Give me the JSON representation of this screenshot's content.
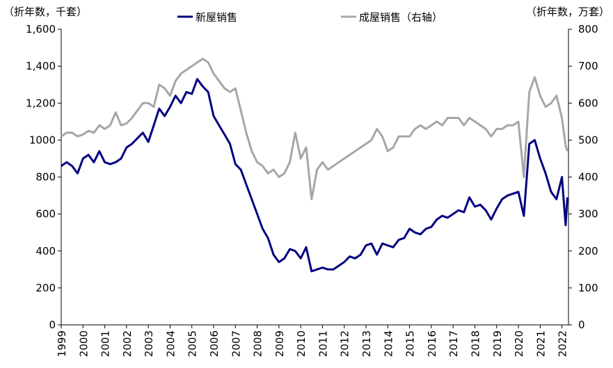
{
  "chart_data": {
    "type": "line",
    "y_label": "（折年数，千套）",
    "y2_label": "（折年数，万套）",
    "x": [
      1999,
      1999.25,
      1999.5,
      1999.75,
      2000,
      2000.25,
      2000.5,
      2000.75,
      2001,
      2001.25,
      2001.5,
      2001.75,
      2002,
      2002.25,
      2002.5,
      2002.75,
      2003,
      2003.25,
      2003.5,
      2003.75,
      2004,
      2004.25,
      2004.5,
      2004.75,
      2005,
      2005.25,
      2005.5,
      2005.75,
      2006,
      2006.25,
      2006.5,
      2006.75,
      2007,
      2007.25,
      2007.5,
      2007.75,
      2008,
      2008.25,
      2008.5,
      2008.75,
      2009,
      2009.25,
      2009.5,
      2009.75,
      2010,
      2010.25,
      2010.5,
      2010.75,
      2011,
      2011.25,
      2011.5,
      2011.75,
      2012,
      2012.25,
      2012.5,
      2012.75,
      2013,
      2013.25,
      2013.5,
      2013.75,
      2014,
      2014.25,
      2014.5,
      2014.75,
      2015,
      2015.25,
      2015.5,
      2015.75,
      2016,
      2016.25,
      2016.5,
      2016.75,
      2017,
      2017.25,
      2017.5,
      2017.75,
      2018,
      2018.25,
      2018.5,
      2018.75,
      2019,
      2019.25,
      2019.5,
      2019.75,
      2020,
      2020.25,
      2020.5,
      2020.75,
      2021,
      2021.25,
      2021.5,
      2021.75,
      2022,
      2022.17,
      2022.25
    ],
    "series": [
      {
        "name": "新屋销售",
        "color": "#000080",
        "values": [
          860,
          880,
          860,
          820,
          900,
          920,
          880,
          940,
          880,
          870,
          880,
          900,
          960,
          980,
          1010,
          1040,
          990,
          1080,
          1170,
          1130,
          1180,
          1240,
          1200,
          1260,
          1250,
          1330,
          1290,
          1260,
          1130,
          1080,
          1030,
          980,
          870,
          840,
          760,
          680,
          600,
          520,
          470,
          380,
          340,
          360,
          410,
          400,
          360,
          420,
          290,
          300,
          310,
          300,
          300,
          320,
          340,
          370,
          360,
          380,
          430,
          440,
          380,
          440,
          430,
          420,
          460,
          470,
          520,
          500,
          490,
          520,
          530,
          570,
          590,
          580,
          600,
          620,
          610,
          690,
          640,
          650,
          620,
          570,
          630,
          680,
          700,
          710,
          720,
          590,
          980,
          1000,
          900,
          820,
          720,
          680,
          800,
          540,
          690
        ]
      },
      {
        "name": "成屋销售（右轴）",
        "color": "#a6a6a6",
        "axis": "y2",
        "values": [
          510,
          520,
          520,
          510,
          515,
          525,
          520,
          540,
          530,
          540,
          575,
          540,
          545,
          560,
          580,
          600,
          600,
          590,
          650,
          640,
          620,
          660,
          680,
          690,
          700,
          710,
          720,
          710,
          680,
          660,
          640,
          630,
          640,
          580,
          520,
          470,
          440,
          430,
          410,
          420,
          400,
          410,
          440,
          520,
          450,
          480,
          340,
          420,
          440,
          420,
          430,
          440,
          450,
          460,
          470,
          480,
          490,
          500,
          530,
          510,
          470,
          480,
          510,
          510,
          510,
          530,
          540,
          530,
          540,
          550,
          540,
          560,
          560,
          560,
          540,
          560,
          550,
          540,
          530,
          510,
          530,
          530,
          540,
          540,
          550,
          400,
          630,
          670,
          620,
          590,
          600,
          620,
          560,
          485,
          470
        ]
      }
    ],
    "xlim": [
      1999,
      2022.3
    ],
    "xticks": [
      1999,
      2000,
      2001,
      2002,
      2003,
      2004,
      2005,
      2006,
      2007,
      2008,
      2009,
      2010,
      2011,
      2012,
      2013,
      2014,
      2015,
      2016,
      2017,
      2018,
      2019,
      2020,
      2021,
      2022
    ],
    "ylim": [
      0,
      1600
    ],
    "yticks": [
      0,
      200,
      400,
      600,
      800,
      1000,
      {
        "value": 1200,
        "label": "1,200"
      },
      {
        "value": 1400,
        "label": "1,400"
      },
      {
        "value": 1600,
        "label": "1,600"
      }
    ],
    "y2lim": [
      0,
      800
    ],
    "y2ticks": [
      0,
      100,
      200,
      300,
      400,
      500,
      600,
      700,
      800
    ],
    "grid": false
  }
}
